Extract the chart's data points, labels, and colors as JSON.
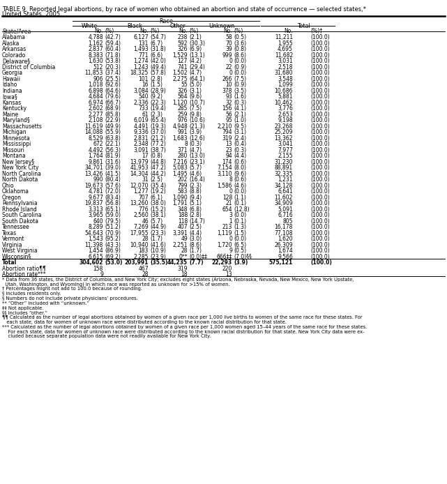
{
  "title1": "TABLE 9. Reported legal abortions, by race of women who obtained an abortion and state of occurrence — selected states,*",
  "title2": "United States, 2005",
  "rows": [
    [
      "Alabama",
      "4,788",
      "(42.7)",
      "6,127",
      "(54.7)",
      "238",
      "(2.1)",
      "58",
      "(0.5)",
      "11,211",
      "(100.0)"
    ],
    [
      "Alaska",
      "1,162",
      "(59.4)",
      "131",
      "(6.7)",
      "592",
      "(30.3)",
      "70",
      "(3.6)",
      "1,955",
      "(100.0)"
    ],
    [
      "Arkansas",
      "2,837",
      "(60.4)",
      "1,493",
      "(31.8)",
      "326",
      "(6.9)",
      "39",
      "(0.8)",
      "4,695",
      "(100.0)"
    ],
    [
      "Colorado",
      "8,383",
      "(71.8)",
      "771",
      "(6.6)",
      "1,529",
      "(13.1)",
      "999",
      "(8.6)",
      "11,682",
      "(100.0)"
    ],
    [
      "Delaware§",
      "1,630",
      "(53.8)",
      "1,274",
      "(42.0)",
      "127",
      "(4.2)",
      "0",
      "(0.0)",
      "3,031",
      "(100.0)"
    ],
    [
      "District of Columbia",
      "512",
      "(20.3)",
      "1,243",
      "(49.4)",
      "741",
      "(29.4)",
      "22",
      "(0.9)",
      "2,518",
      "(100.0)"
    ],
    [
      "Georgia",
      "11,853",
      "(37.4)",
      "18,325",
      "(57.8)",
      "1,502",
      "(4.7)",
      "0",
      "(0.0)",
      "31,680",
      "(100.0)"
    ],
    [
      "Hawaii",
      "906",
      "(25.5)",
      "101",
      "(2.8)",
      "2,275",
      "(64.1)",
      "266",
      "(7.5)",
      "3,548",
      "(100.0)"
    ],
    [
      "Idaho",
      "1,018",
      "(92.6)",
      "16",
      "(1.5)",
      "55",
      "(5.0)",
      "10",
      "(0.9)",
      "1,099",
      "(100.0)"
    ],
    [
      "Indiana",
      "6,898",
      "(64.6)",
      "3,084",
      "(28.9)",
      "326",
      "(3.1)",
      "378",
      "(3.5)",
      "10,686",
      "(100.0)"
    ],
    [
      "Iowa§",
      "4,684",
      "(79.6)",
      "540",
      "(9.2)",
      "564",
      "(9.6)",
      "93",
      "(1.6)",
      "5,881",
      "(100.0)"
    ],
    [
      "Kansas",
      "6,974",
      "(66.7)",
      "2,336",
      "(22.3)",
      "1,120",
      "(10.7)",
      "32",
      "(0.3)",
      "10,462",
      "(100.0)"
    ],
    [
      "Kentucky",
      "2,602",
      "(68.9)",
      "733",
      "(19.4)",
      "285",
      "(7.5)",
      "156",
      "(4.1)",
      "3,776",
      "(100.0)"
    ],
    [
      "Maine",
      "2,277",
      "(85.8)",
      "61",
      "(2.3)",
      "259",
      "(9.8)",
      "56",
      "(2.1)",
      "2,653",
      "(100.0)"
    ],
    [
      "Maryland§",
      "2,108",
      "(22.9)",
      "6,019",
      "(65.4)",
      "976",
      "(10.6)",
      "95",
      "(1.0)",
      "9,198",
      "(100.0)"
    ],
    [
      "Massachusetts",
      "11,619",
      "(49.9)",
      "4,491",
      "(19.3)",
      "4,948",
      "(21.3)",
      "2,210",
      "(9.5)",
      "23,268",
      "(100.0)"
    ],
    [
      "Michigan",
      "14,088",
      "(55.9)",
      "9,336",
      "(37.0)",
      "991",
      "(3.9)",
      "794",
      "(3.1)",
      "25,209",
      "(100.0)"
    ],
    [
      "Minnesota",
      "8,529",
      "(63.8)",
      "2,831",
      "(21.2)",
      "1,683",
      "(12.6)",
      "319",
      "(2.4)",
      "13,362",
      "(100.0)"
    ],
    [
      "Mississippi",
      "672",
      "(22.1)",
      "2,348",
      "(77.2)",
      "8",
      "(0.3)",
      "13",
      "(0.4)",
      "3,041",
      "(100.0)"
    ],
    [
      "Missouri",
      "4,492",
      "(56.3)",
      "3,091",
      "(38.7)",
      "371",
      "(4.7)",
      "23",
      "(0.3)",
      "7,977",
      "(100.0)"
    ],
    [
      "Montana",
      "1,764",
      "(81.9)",
      "17",
      "(0.8)",
      "280",
      "(13.0)",
      "94",
      "(4.4)",
      "2,155",
      "(100.0)"
    ],
    [
      "New Jersey§",
      "9,861",
      "(31.6)",
      "13,979",
      "(44.8)",
      "7,216",
      "(23.1)",
      "174",
      "(0.6)",
      "31,230",
      "(100.0)"
    ],
    [
      "New York City",
      "34,701",
      "(39.0)",
      "41,953",
      "(47.2)",
      "5,083",
      "(5.7)",
      "7,154",
      "(8.0)",
      "88,891",
      "(100.0)"
    ],
    [
      "North Carolina",
      "13,426",
      "(41.5)",
      "14,304",
      "(44.2)",
      "1,495",
      "(4.6)",
      "3,110",
      "(9.6)",
      "32,335",
      "(100.0)"
    ],
    [
      "North Dakota",
      "990",
      "(80.4)",
      "31",
      "(2.5)",
      "202",
      "(16.4)",
      "8",
      "(0.6)",
      "1,231",
      "(100.0)"
    ],
    [
      "Ohio",
      "19,673",
      "(57.6)",
      "12,070",
      "(35.4)",
      "799",
      "(2.3)",
      "1,586",
      "(4.6)",
      "34,128",
      "(100.0)"
    ],
    [
      "Oklahoma",
      "4,781",
      "(72.0)",
      "1,277",
      "(19.2)",
      "583",
      "(8.8)",
      "0",
      "(0.0)",
      "6,641",
      "(100.0)"
    ],
    [
      "Oregon",
      "9,677",
      "(83.4)",
      "707",
      "(6.1)",
      "1,090",
      "(9.4)",
      "128",
      "(1.1)",
      "11,602",
      "(100.0)"
    ],
    [
      "Pennsylvania",
      "19,837",
      "(56.8)",
      "13,260",
      "(38.0)",
      "1,791",
      "(5.1)",
      "21",
      "(0.1)",
      "34,909",
      "(100.0)"
    ],
    [
      "Rhode Island",
      "3,313",
      "(65.1)",
      "776",
      "(15.2)",
      "348",
      "(6.8)",
      "654",
      "(12.8)",
      "5,091",
      "(100.0)"
    ],
    [
      "South Carolina",
      "3,965",
      "(59.0)",
      "2,560",
      "(38.1)",
      "188",
      "(2.8)",
      "3",
      "(0.0)",
      "6,716",
      "(100.0)"
    ],
    [
      "South Dakota",
      "640",
      "(79.5)",
      "46",
      "(5.7)",
      "118",
      "(14.7)",
      "1",
      "(0.1)",
      "805",
      "(100.0)"
    ],
    [
      "Tennessee",
      "8,289",
      "(51.2)",
      "7,269",
      "(44.9)",
      "407",
      "(2.5)",
      "213",
      "(1.3)",
      "16,178",
      "(100.0)"
    ],
    [
      "Texas",
      "54,643",
      "(70.9)",
      "17,955",
      "(23.3)",
      "3,391",
      "(4.4)",
      "1,119",
      "(1.5)",
      "77,108",
      "(100.0)"
    ],
    [
      "Vermont",
      "1,543",
      "(95.2)",
      "28",
      "(1.7)",
      "49",
      "(3.0)",
      "0",
      "(0.0)",
      "1,620",
      "(100.0)"
    ],
    [
      "Virginia",
      "11,398",
      "(43.3)",
      "10,940",
      "(41.6)",
      "2,251",
      "(8.6)",
      "1,720",
      "(6.5)",
      "26,309",
      "(100.0)"
    ],
    [
      "West Virginia",
      "1,454",
      "(86.9)",
      "183",
      "(10.9)",
      "28",
      "(1.7)",
      "9",
      "(0.5)",
      "1,674",
      "(100.0)"
    ],
    [
      "Wisconsin§",
      "6,615",
      "(69.2)",
      "2,285",
      "(23.9)",
      "0**",
      "(0.0)‡‡",
      "666‡‡",
      "(7.0)§§",
      "9,566",
      "(100.0)"
    ],
    [
      "Total",
      "304,602",
      "(53.0)",
      "203,991",
      "(35.5)",
      "44,235",
      "(7.7)",
      "22,293",
      "(3.9)",
      "575,121",
      "(100.0)"
    ],
    [
      "Abortion ratio¶¶",
      "158",
      "",
      "467",
      "",
      "319",
      "",
      "220",
      "",
      "",
      ""
    ],
    [
      "Abortion rate***",
      "9",
      "",
      "28",
      "",
      "18",
      "",
      "13",
      "",
      "",
      ""
    ]
  ],
  "footnote_lines": [
    "* Data from 36 states, the District of Columbia, and New York City; excludes eight states (Arizona, Nebraska, Nevada, New Mexico, New York Upstate,",
    "  Utah, Washington, and Wyoming) in which race was reported as unknown for >15% of women.",
    "† Percentages might not add to 100.0 because of rounding.",
    "§ Includes residents only.",
    "§ Numbers do not include private physicians’ procedures.",
    "** “Other” included with “unknown.”",
    "‡‡ Not applicable.",
    "§§ Includes “other.”",
    "¶¶ Calculated as the number of legal abortions obtained by women of a given race per 1,000 live births to women of the same race for these states. For",
    "   each state, data for women of unknown race were distributed according to the known racial distribution for that state.",
    "*** Calculated as the number of legal abortions obtained by women of a given race per 1,000 women aged 15–44 years of the same race for these states.",
    "    For each state, data for women of unknown race were distributed according to the known racial distribution for that state. New York City data were ex-",
    "    cluded because separate population data were not readily available for New York City."
  ]
}
